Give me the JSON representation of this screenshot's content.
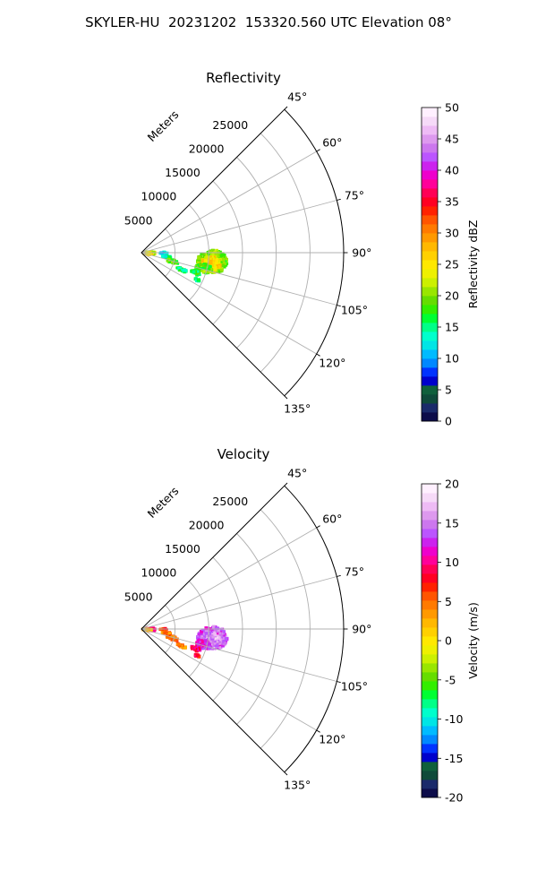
{
  "figure": {
    "suptitle": "SKYLER-HU  20231202  153320.560 UTC Elevation 08°"
  },
  "chart_data": [
    {
      "type": "heatmap",
      "subtype": "polar-sector-ppi",
      "title": "Reflectivity",
      "radial_label": "Meters",
      "radial_ticks": [
        5000,
        10000,
        15000,
        20000,
        25000
      ],
      "angle_ticks": [
        "45°",
        "60°",
        "75°",
        "90°",
        "105°",
        "120°",
        "135°"
      ],
      "angle_range_deg": [
        45,
        135
      ],
      "max_range_m": 30000,
      "grid": true,
      "colorbar": {
        "label": "Reflectivity dBZ",
        "min": 0,
        "max": 50,
        "ticks": [
          0,
          5,
          10,
          15,
          20,
          25,
          30,
          35,
          40,
          45,
          50
        ],
        "colors": [
          "#0d0d4a",
          "#1a2a6a",
          "#0f4a3a",
          "#10603c",
          "#0000cc",
          "#0033ff",
          "#0088ff",
          "#00bbff",
          "#00e5e5",
          "#00ffcc",
          "#00ff88",
          "#00ff33",
          "#33ee00",
          "#66dd00",
          "#99e600",
          "#ccf000",
          "#eef000",
          "#ffe800",
          "#ffd000",
          "#ffb800",
          "#ff9900",
          "#ff7a00",
          "#ff5500",
          "#ff2200",
          "#ff0022",
          "#ff0055",
          "#ff0099",
          "#ee00cc",
          "#cc22ee",
          "#bb55ff",
          "#cc77ee",
          "#dd99ee",
          "#eebbf5",
          "#f6daf8",
          "#fff0ff"
        ]
      },
      "echoes": [
        {
          "az": 93,
          "r": 1200,
          "ar": 8,
          "rr": 800,
          "value": 22
        },
        {
          "az": 97,
          "r": 900,
          "ar": 6,
          "rr": 600,
          "value": 26
        },
        {
          "az": 91,
          "r": 3300,
          "ar": 2,
          "rr": 600,
          "value": 11
        },
        {
          "az": 99,
          "r": 3800,
          "ar": 2,
          "rr": 700,
          "value": 14
        },
        {
          "az": 106,
          "r": 4800,
          "ar": 3,
          "rr": 900,
          "value": 18
        },
        {
          "az": 113,
          "r": 6500,
          "ar": 2,
          "rr": 800,
          "value": 15
        },
        {
          "az": 97,
          "r": 10600,
          "ar": 9,
          "rr": 2200,
          "value": 20
        },
        {
          "az": 99,
          "r": 10400,
          "ar": 6,
          "rr": 1400,
          "value": 25
        },
        {
          "az": 104,
          "r": 9500,
          "ar": 4,
          "rr": 1200,
          "value": 19
        },
        {
          "az": 110,
          "r": 8600,
          "ar": 2,
          "rr": 700,
          "value": 17
        },
        {
          "az": 116,
          "r": 9200,
          "ar": 1,
          "rr": 400,
          "value": 14
        }
      ]
    },
    {
      "type": "heatmap",
      "subtype": "polar-sector-ppi",
      "title": "Velocity",
      "radial_label": "Meters",
      "radial_ticks": [
        5000,
        10000,
        15000,
        20000,
        25000
      ],
      "angle_ticks": [
        "45°",
        "60°",
        "75°",
        "90°",
        "105°",
        "120°",
        "135°"
      ],
      "angle_range_deg": [
        45,
        135
      ],
      "max_range_m": 30000,
      "grid": true,
      "colorbar": {
        "label": "Velocity (m/s)",
        "min": -20,
        "max": 20,
        "ticks": [
          -20,
          -15,
          -10,
          -5,
          0,
          5,
          10,
          15,
          20
        ],
        "colors": [
          "#0d0d4a",
          "#1a2a6a",
          "#0f4a3a",
          "#10603c",
          "#0000cc",
          "#0033ff",
          "#0088ff",
          "#00bbff",
          "#00e5e5",
          "#00ffcc",
          "#00ff88",
          "#00ff33",
          "#33ee00",
          "#66dd00",
          "#99e600",
          "#ccf000",
          "#eef000",
          "#ffe800",
          "#ffd000",
          "#ffb800",
          "#ff9900",
          "#ff7a00",
          "#ff5500",
          "#ff2200",
          "#ff0022",
          "#ff0055",
          "#ff0099",
          "#ee00cc",
          "#cc22ee",
          "#bb55ff",
          "#cc77ee",
          "#dd99ee",
          "#eebbf5",
          "#f6daf8",
          "#fff0ff"
        ]
      },
      "echoes": [
        {
          "az": 93,
          "r": 1200,
          "ar": 8,
          "rr": 800,
          "value": 9
        },
        {
          "az": 97,
          "r": 900,
          "ar": 6,
          "rr": 600,
          "value": 2
        },
        {
          "az": 91,
          "r": 3300,
          "ar": 2,
          "rr": 600,
          "value": 6
        },
        {
          "az": 99,
          "r": 3800,
          "ar": 2,
          "rr": 700,
          "value": 5
        },
        {
          "az": 106,
          "r": 4800,
          "ar": 3,
          "rr": 900,
          "value": 5
        },
        {
          "az": 113,
          "r": 6500,
          "ar": 2,
          "rr": 800,
          "value": 4
        },
        {
          "az": 97,
          "r": 10600,
          "ar": 9,
          "rr": 2200,
          "value": 14
        },
        {
          "az": 99,
          "r": 10400,
          "ar": 6,
          "rr": 1400,
          "value": 16
        },
        {
          "az": 104,
          "r": 9500,
          "ar": 4,
          "rr": 1200,
          "value": 12
        },
        {
          "az": 110,
          "r": 8600,
          "ar": 2,
          "rr": 700,
          "value": 10
        },
        {
          "az": 116,
          "r": 9200,
          "ar": 1,
          "rr": 400,
          "value": 8
        }
      ]
    }
  ]
}
